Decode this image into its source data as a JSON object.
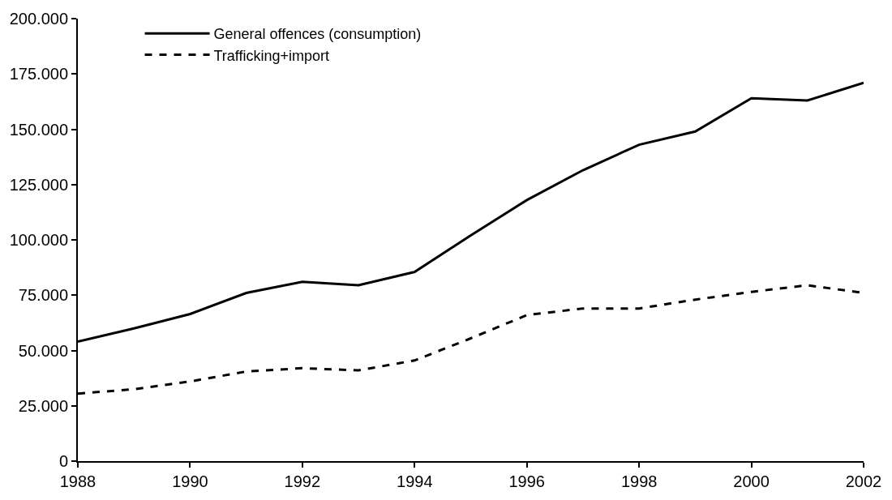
{
  "chart_data": {
    "type": "line",
    "x": [
      1988,
      1989,
      1990,
      1991,
      1992,
      1993,
      1994,
      1995,
      1996,
      1997,
      1998,
      1999,
      2000,
      2001,
      2002
    ],
    "series": [
      {
        "name": "General offences (consumption)",
        "color": "#000000",
        "line_style": "solid",
        "values": [
          54000,
          60000,
          66500,
          76000,
          81000,
          79500,
          85500,
          102000,
          118000,
          131500,
          143000,
          149000,
          164000,
          163000,
          171000
        ]
      },
      {
        "name": "Trafficking+import",
        "color": "#000000",
        "line_style": "dashed",
        "values": [
          30500,
          32500,
          36000,
          40500,
          42000,
          41000,
          45500,
          55500,
          66000,
          69000,
          69000,
          73000,
          76500,
          79500,
          76000
        ]
      }
    ],
    "xlim": [
      1988,
      2002
    ],
    "xticks": [
      1988,
      1990,
      1992,
      1994,
      1996,
      1998,
      2000,
      2002
    ],
    "ylim": [
      0,
      200000
    ],
    "yticks": [
      0,
      {
        "value": 25000,
        "label": "25.000"
      },
      {
        "value": 50000,
        "label": "50.000"
      },
      {
        "value": 75000,
        "label": "75.000"
      },
      {
        "value": 100000,
        "label": "100.000"
      },
      {
        "value": 125000,
        "label": "125.000"
      },
      {
        "value": 150000,
        "label": "150.000"
      },
      {
        "value": 175000,
        "label": "175.000"
      },
      {
        "value": 200000,
        "label": "200.000"
      }
    ],
    "legend": "top left",
    "marker": "none"
  }
}
